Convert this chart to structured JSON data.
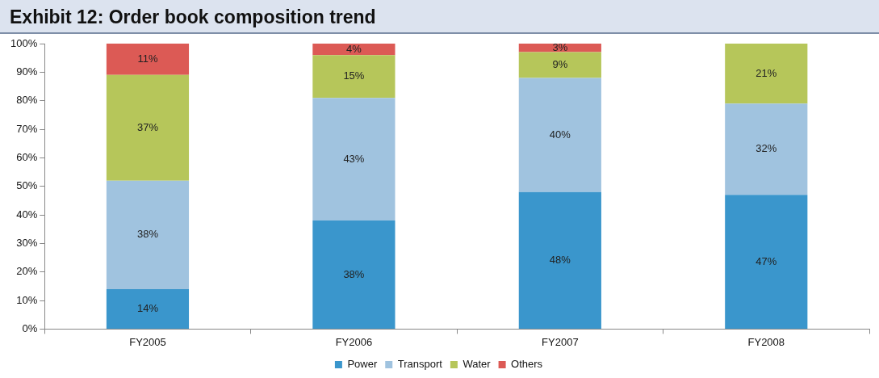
{
  "chart_data": {
    "type": "bar",
    "title": "Exhibit 12: Order book composition trend",
    "stacked": true,
    "categories": [
      "FY2005",
      "FY2006",
      "FY2007",
      "FY2008"
    ],
    "series": [
      {
        "name": "Power",
        "color": "#3a96cc",
        "values": [
          14,
          38,
          48,
          47
        ],
        "value_labels": [
          "14%",
          "38%",
          "48%",
          "47%"
        ]
      },
      {
        "name": "Transport",
        "color": "#a0c3df",
        "values": [
          38,
          43,
          40,
          32
        ],
        "value_labels": [
          "38%",
          "43%",
          "40%",
          "32%"
        ]
      },
      {
        "name": "Water",
        "color": "#b6c65a",
        "values": [
          37,
          15,
          9,
          21
        ],
        "value_labels": [
          "37%",
          "15%",
          "9%",
          "21%"
        ]
      },
      {
        "name": "Others",
        "color": "#dc5a55",
        "values": [
          11,
          4,
          3,
          null
        ],
        "value_labels": [
          "11%",
          "4%",
          "3%",
          null
        ]
      }
    ],
    "ylim": [
      0,
      100
    ],
    "yticks": [
      {
        "value": 0,
        "label": "0%"
      },
      {
        "value": 10,
        "label": "10%"
      },
      {
        "value": 20,
        "label": "20%"
      },
      {
        "value": 30,
        "label": "30%"
      },
      {
        "value": 40,
        "label": "40%"
      },
      {
        "value": 50,
        "label": "50%"
      },
      {
        "value": 60,
        "label": "60%"
      },
      {
        "value": 70,
        "label": "70%"
      },
      {
        "value": 80,
        "label": "80%"
      },
      {
        "value": 90,
        "label": "90%"
      },
      {
        "value": 100,
        "label": "100%"
      }
    ],
    "grid": false,
    "legend": "bottom"
  }
}
